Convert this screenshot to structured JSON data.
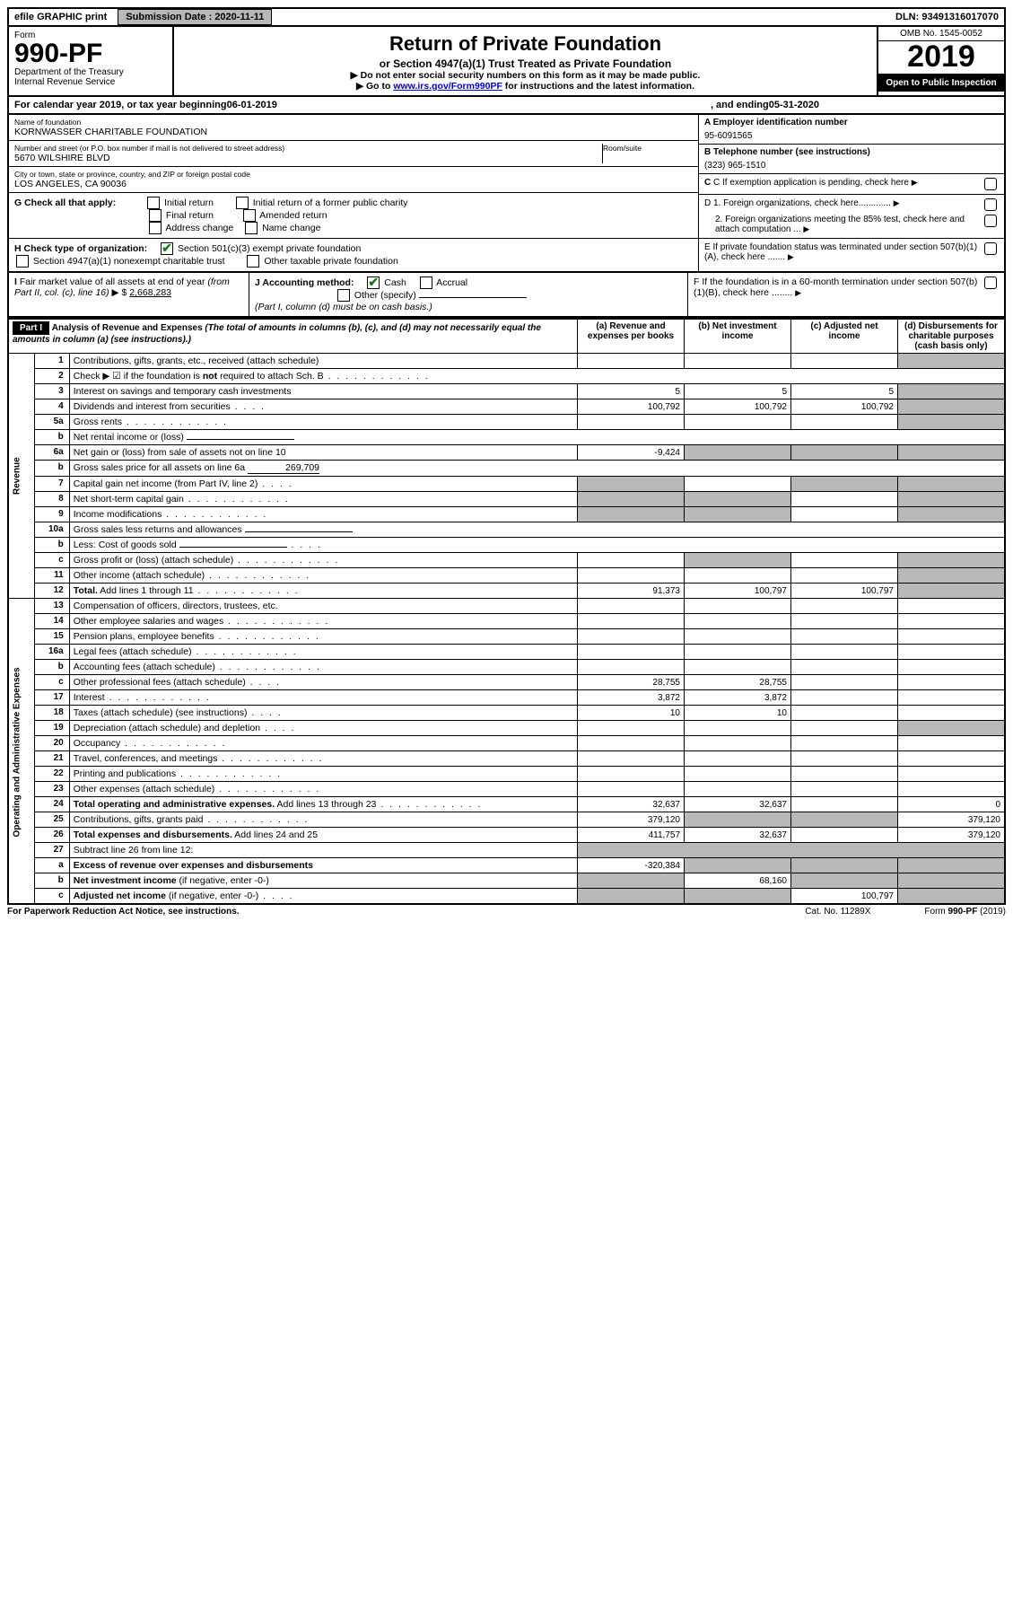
{
  "topbar": {
    "efile": "efile GRAPHIC print",
    "submission_label": "Submission Date : 2020-11-11",
    "dln": "DLN: 93491316017070"
  },
  "header": {
    "form_word": "Form",
    "form_number": "990-PF",
    "dept1": "Department of the Treasury",
    "dept2": "Internal Revenue Service",
    "title": "Return of Private Foundation",
    "subtitle": "or Section 4947(a)(1) Trust Treated as Private Foundation",
    "note1": "▶ Do not enter social security numbers on this form as it may be made public.",
    "note2_pre": "▶ Go to ",
    "note2_link": "www.irs.gov/Form990PF",
    "note2_post": " for instructions and the latest information.",
    "omb": "OMB No. 1545-0052",
    "year": "2019",
    "open": "Open to Public Inspection"
  },
  "calyear": {
    "prefix": "For calendar year 2019, or tax year beginning ",
    "begin": "06-01-2019",
    "mid": " , and ending ",
    "end": "05-31-2020"
  },
  "info": {
    "name_lbl": "Name of foundation",
    "name_val": "KORNWASSER CHARITABLE FOUNDATION",
    "street_lbl": "Number and street (or P.O. box number if mail is not delivered to street address)",
    "street_val": "5670 WILSHIRE BLVD",
    "room_lbl": "Room/suite",
    "city_lbl": "City or town, state or province, country, and ZIP or foreign postal code",
    "city_val": "LOS ANGELES, CA  90036",
    "a_lbl": "A Employer identification number",
    "a_val": "95-6091565",
    "b_lbl": "B Telephone number (see instructions)",
    "b_val": "(323) 965-1510",
    "c_lbl": "C If exemption application is pending, check here",
    "d1": "D 1. Foreign organizations, check here.............",
    "d2": "2. Foreign organizations meeting the 85% test, check here and attach computation ...",
    "e": "E If private foundation status was terminated under section 507(b)(1)(A), check here .......",
    "f": "F If the foundation is in a 60-month termination under section 507(b)(1)(B), check here ........"
  },
  "g": {
    "label": "G Check all that apply:",
    "opts": [
      "Initial return",
      "Initial return of a former public charity",
      "Final return",
      "Amended return",
      "Address change",
      "Name change"
    ]
  },
  "h": {
    "label": "H Check type of organization:",
    "opt1": "Section 501(c)(3) exempt private foundation",
    "opt2": "Section 4947(a)(1) nonexempt charitable trust",
    "opt3": "Other taxable private foundation"
  },
  "i": {
    "label": "I Fair market value of all assets at end of year (from Part II, col. (c), line 16) ▶ $",
    "val": "2,668,283"
  },
  "j": {
    "label": "J Accounting method:",
    "cash": "Cash",
    "accrual": "Accrual",
    "other": "Other (specify)",
    "note": "(Part I, column (d) must be on cash basis.)"
  },
  "part1": {
    "label": "Part I",
    "title": "Analysis of Revenue and Expenses",
    "note": " (The total of amounts in columns (b), (c), and (d) may not necessarily equal the amounts in column (a) (see instructions).)",
    "cols": {
      "a": "(a) Revenue and expenses per books",
      "b": "(b) Net investment income",
      "c": "(c) Adjusted net income",
      "d": "(d) Disbursements for charitable purposes (cash basis only)"
    }
  },
  "section_labels": {
    "revenue": "Revenue",
    "expenses": "Operating and Administrative Expenses"
  },
  "rows": [
    {
      "n": "1",
      "desc": "Contributions, gifts, grants, etc., received (attach schedule)",
      "a": "",
      "b": "",
      "c": "",
      "d": "s"
    },
    {
      "n": "2",
      "desc": "Check ▶ ☑ if the foundation is <b>not</b> required to attach Sch. B",
      "dots": true,
      "merged": true
    },
    {
      "n": "3",
      "desc": "Interest on savings and temporary cash investments",
      "a": "5",
      "b": "5",
      "c": "5",
      "d": "s"
    },
    {
      "n": "4",
      "desc": "Dividends and interest from securities",
      "dots": "short",
      "a": "100,792",
      "b": "100,792",
      "c": "100,792",
      "d": "s"
    },
    {
      "n": "5a",
      "desc": "Gross rents",
      "dots": true,
      "a": "",
      "b": "",
      "c": "",
      "d": "s"
    },
    {
      "n": "b",
      "desc": "Net rental income or (loss)",
      "field": true,
      "merged": true
    },
    {
      "n": "6a",
      "desc": "Net gain or (loss) from sale of assets not on line 10",
      "a": "-9,424",
      "b": "s",
      "c": "s",
      "d": "s"
    },
    {
      "n": "b",
      "desc": "Gross sales price for all assets on line 6a",
      "field": "269,709",
      "merged": true
    },
    {
      "n": "7",
      "desc": "Capital gain net income (from Part IV, line 2)",
      "dots": "short",
      "a": "s",
      "b": "",
      "c": "s",
      "d": "s"
    },
    {
      "n": "8",
      "desc": "Net short-term capital gain",
      "dots": true,
      "a": "s",
      "b": "s",
      "c": "",
      "d": "s"
    },
    {
      "n": "9",
      "desc": "Income modifications",
      "dots": true,
      "a": "s",
      "b": "s",
      "c": "",
      "d": "s"
    },
    {
      "n": "10a",
      "desc": "Gross sales less returns and allowances",
      "field": true,
      "merged": true
    },
    {
      "n": "b",
      "desc": "Less: Cost of goods sold",
      "dots": "short",
      "field": true,
      "merged": true
    },
    {
      "n": "c",
      "desc": "Gross profit or (loss) (attach schedule)",
      "dots": true,
      "a": "",
      "b": "s",
      "c": "",
      "d": "s"
    },
    {
      "n": "11",
      "desc": "Other income (attach schedule)",
      "dots": true,
      "a": "",
      "b": "",
      "c": "",
      "d": "s"
    },
    {
      "n": "12",
      "desc": "<b>Total.</b> Add lines 1 through 11",
      "dots": true,
      "a": "91,373",
      "b": "100,797",
      "c": "100,797",
      "d": "s"
    },
    {
      "n": "13",
      "desc": "Compensation of officers, directors, trustees, etc.",
      "a": "",
      "b": "",
      "c": "",
      "d": ""
    },
    {
      "n": "14",
      "desc": "Other employee salaries and wages",
      "dots": true,
      "a": "",
      "b": "",
      "c": "",
      "d": ""
    },
    {
      "n": "15",
      "desc": "Pension plans, employee benefits",
      "dots": true,
      "a": "",
      "b": "",
      "c": "",
      "d": ""
    },
    {
      "n": "16a",
      "desc": "Legal fees (attach schedule)",
      "dots": true,
      "a": "",
      "b": "",
      "c": "",
      "d": ""
    },
    {
      "n": "b",
      "desc": "Accounting fees (attach schedule)",
      "dots": true,
      "a": "",
      "b": "",
      "c": "",
      "d": ""
    },
    {
      "n": "c",
      "desc": "Other professional fees (attach schedule)",
      "dots": "short",
      "a": "28,755",
      "b": "28,755",
      "c": "",
      "d": ""
    },
    {
      "n": "17",
      "desc": "Interest",
      "dots": true,
      "a": "3,872",
      "b": "3,872",
      "c": "",
      "d": ""
    },
    {
      "n": "18",
      "desc": "Taxes (attach schedule) (see instructions)",
      "dots": "short",
      "a": "10",
      "b": "10",
      "c": "",
      "d": ""
    },
    {
      "n": "19",
      "desc": "Depreciation (attach schedule) and depletion",
      "dots": "short",
      "a": "",
      "b": "",
      "c": "",
      "d": "s"
    },
    {
      "n": "20",
      "desc": "Occupancy",
      "dots": true,
      "a": "",
      "b": "",
      "c": "",
      "d": ""
    },
    {
      "n": "21",
      "desc": "Travel, conferences, and meetings",
      "dots": true,
      "a": "",
      "b": "",
      "c": "",
      "d": ""
    },
    {
      "n": "22",
      "desc": "Printing and publications",
      "dots": true,
      "a": "",
      "b": "",
      "c": "",
      "d": ""
    },
    {
      "n": "23",
      "desc": "Other expenses (attach schedule)",
      "dots": true,
      "a": "",
      "b": "",
      "c": "",
      "d": ""
    },
    {
      "n": "24",
      "desc": "<b>Total operating and administrative expenses.</b> Add lines 13 through 23",
      "dots": true,
      "a": "32,637",
      "b": "32,637",
      "c": "",
      "d": "0"
    },
    {
      "n": "25",
      "desc": "Contributions, gifts, grants paid",
      "dots": true,
      "a": "379,120",
      "b": "s",
      "c": "s",
      "d": "379,120"
    },
    {
      "n": "26",
      "desc": "<b>Total expenses and disbursements.</b> Add lines 24 and 25",
      "a": "411,757",
      "b": "32,637",
      "c": "",
      "d": "379,120"
    },
    {
      "n": "27",
      "desc": "Subtract line 26 from line 12:",
      "merged": true,
      "shade4": true
    },
    {
      "n": "a",
      "desc": "<b>Excess of revenue over expenses and disbursements</b>",
      "a": "-320,384",
      "b": "s",
      "c": "s",
      "d": "s"
    },
    {
      "n": "b",
      "desc": "<b>Net investment income</b> (if negative, enter -0-)",
      "a": "s",
      "b": "68,160",
      "c": "s",
      "d": "s"
    },
    {
      "n": "c",
      "desc": "<b>Adjusted net income</b> (if negative, enter -0-)",
      "dots": "short",
      "a": "s",
      "b": "s",
      "c": "100,797",
      "d": "s"
    }
  ],
  "footer": {
    "left": "For Paperwork Reduction Act Notice, see instructions.",
    "mid": "Cat. No. 11289X",
    "right": "Form <b>990-PF</b> (2019)"
  }
}
